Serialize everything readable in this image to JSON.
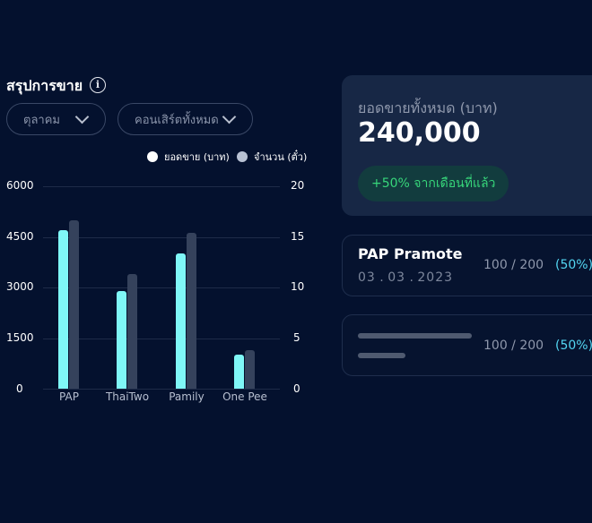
{
  "summary": {
    "title": "สรุปการขาย",
    "month_filter": "ตุลาคม",
    "concert_filter": "คอนเสิร์ตทั้งหมด"
  },
  "legend": {
    "sales_label": "ยอดขาย (บาท)",
    "tickets_label": "จำนวน (ตั๋ว)"
  },
  "chart_data": {
    "type": "bar",
    "categories": [
      "PAP",
      "ThaiTwo",
      "Pamily",
      "One Pee"
    ],
    "series": [
      {
        "name": "ยอดขาย (บาท)",
        "axis": "left",
        "color": "#7ff7f7",
        "values": [
          4700,
          2900,
          4000,
          1000
        ]
      },
      {
        "name": "จำนวน (ตั๋ว)",
        "axis": "right",
        "color": "#35425c",
        "values": [
          16.6,
          11.3,
          15.4,
          3.8
        ]
      }
    ],
    "left_axis": {
      "ticks": [
        "6000",
        "4500",
        "3000",
        "1500",
        "0"
      ],
      "min": 0,
      "max": 6000
    },
    "right_axis": {
      "ticks": [
        "20",
        "15",
        "10",
        "5",
        "0"
      ],
      "min": 0,
      "max": 20
    }
  },
  "total_card": {
    "label": "ยอดขายทั้งหมด (บาท)",
    "value": "240,000",
    "growth": "+50% จากเดือนที่แล้ว"
  },
  "concerts": [
    {
      "name": "PAP Pramote",
      "date_day": "03",
      "date_month": "03",
      "date_year": "2023",
      "sold": "100 / 200",
      "percent": "(50%)"
    },
    {
      "name": "",
      "sold": "100 / 200",
      "percent": "(50%)"
    }
  ]
}
